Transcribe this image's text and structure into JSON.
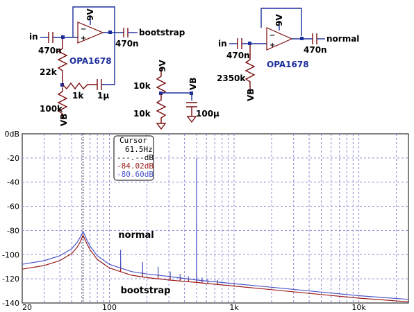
{
  "schematic": {
    "left": {
      "in_label": "in",
      "out_label": "bootstrap",
      "supply": "9V",
      "opamp": "OPA1678",
      "c_in": "470n",
      "c_out": "470n",
      "r1": "22k",
      "r2": "1k",
      "c_boot": "1μ",
      "r_bias": "100k",
      "vb": "VB"
    },
    "middle": {
      "supply": "9V",
      "r_top": "10k",
      "r_bottom": "10k",
      "vb": "VB",
      "cap": "100μ"
    },
    "right": {
      "in_label": "in",
      "out_label": "normal",
      "supply": "9V",
      "opamp": "OPA1678",
      "c_in": "470n",
      "c_out": "470n",
      "r_bias": "2350k",
      "vb": "VB"
    }
  },
  "cursor_box": {
    "title": "Cursor",
    "freq": "61.5Hz",
    "line1": "---.--dB",
    "line2": "-84.02dB",
    "line3": "-80.60dB"
  },
  "colors": {
    "normal": "#4a54c8",
    "bootstrap": "#9b1b1b",
    "grid": "#8a8ad6",
    "wire": "#1d2e9c",
    "component": "#7a0c0c"
  },
  "chart_data": {
    "type": "line",
    "x_scale": "log",
    "xlim": [
      20,
      25000
    ],
    "ylim": [
      -140,
      0
    ],
    "x_ticks": [
      "20",
      "100",
      "1k",
      "10k"
    ],
    "y_ticks": [
      "0dB",
      "-20",
      "-40",
      "-60",
      "-80",
      "-100",
      "-120",
      "-140"
    ],
    "grid": true,
    "cursor_x": 61.5,
    "series": [
      {
        "name": "normal",
        "color": "#4a54c8",
        "x": [
          20,
          30,
          40,
          50,
          55,
          58,
          60,
          61.5,
          63,
          66,
          70,
          80,
          100,
          150,
          200,
          300,
          500,
          1000,
          2000,
          5000,
          10000,
          25000
        ],
        "y": [
          -108,
          -105,
          -101,
          -95,
          -90,
          -86,
          -83,
          -81,
          -83,
          -88,
          -93,
          -101,
          -108,
          -114,
          -116,
          -118,
          -121,
          -124,
          -127,
          -131,
          -134,
          -137
        ],
        "harmonics": [
          [
            123,
            -96
          ],
          [
            184.5,
            -106
          ],
          [
            246,
            -110
          ],
          [
            307.5,
            -114
          ],
          [
            369,
            -116
          ],
          [
            430.5,
            -118
          ],
          [
            500,
            -20
          ],
          [
            500,
            -74
          ],
          [
            553.5,
            -119
          ],
          [
            615,
            -120
          ],
          [
            738,
            -121
          ],
          [
            1000,
            -123
          ]
        ]
      },
      {
        "name": "bootstrap",
        "color": "#9b1b1b",
        "x": [
          20,
          30,
          40,
          50,
          55,
          58,
          60,
          61.5,
          63,
          66,
          70,
          80,
          100,
          150,
          200,
          300,
          500,
          1000,
          2000,
          5000,
          10000,
          25000
        ],
        "y": [
          -112,
          -109,
          -105,
          -99,
          -94,
          -90,
          -86.5,
          -84,
          -86.5,
          -91,
          -96,
          -104,
          -111,
          -117,
          -119,
          -121,
          -123,
          -126,
          -129,
          -133,
          -136,
          -139
        ],
        "harmonics": [
          [
            123,
            -106
          ],
          [
            184.5,
            -113
          ],
          [
            246,
            -116
          ],
          [
            307.5,
            -118
          ],
          [
            369,
            -119
          ],
          [
            430.5,
            -120
          ],
          [
            500,
            -116
          ],
          [
            553.5,
            -121
          ],
          [
            615,
            -122
          ],
          [
            738,
            -123
          ],
          [
            1000,
            -125
          ]
        ]
      }
    ]
  }
}
